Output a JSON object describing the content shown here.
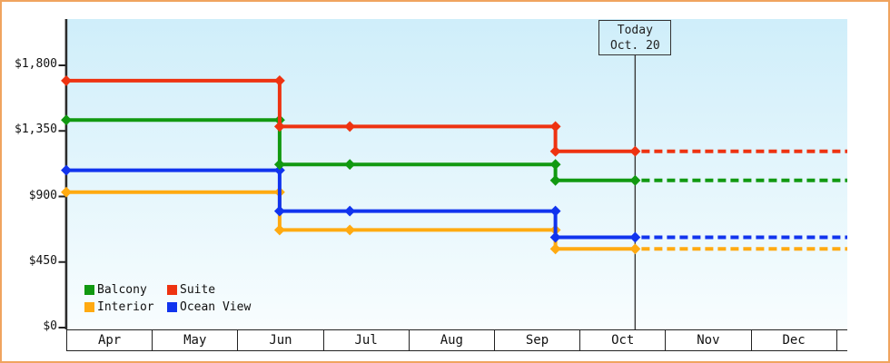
{
  "frame": {
    "border_color": "#f0a45f",
    "background": "#ffffff",
    "plot_gradient_top": "#cfeefa",
    "plot_gradient_bottom": "#f8fdfe",
    "axis_color": "#2b2b2b"
  },
  "chart_data": {
    "type": "line-step",
    "title": "",
    "y_axis": {
      "tick_labels": [
        "$1,800",
        "$1,350",
        "$900",
        "$450",
        "$0"
      ],
      "tick_values": [
        1800,
        1350,
        900,
        450,
        0
      ],
      "min": 0,
      "max": 1800,
      "currency_prefix": "$"
    },
    "x_axis": {
      "month_labels": [
        "Apr",
        "May",
        "Jun",
        "Jul",
        "Aug",
        "Sep",
        "Oct",
        "Nov",
        "Dec"
      ]
    },
    "today_marker": {
      "line1": "Today",
      "line2": "Oct. 20",
      "month_offset": 6.64
    },
    "price_drop_month_offsets": [
      2.49,
      5.71
    ],
    "mid_marker_month_offset": 3.31,
    "projection_end_month_offset": 9.12,
    "projection_style": "dashed",
    "grid": "off",
    "legend_position": "bottom-left",
    "series": [
      {
        "name": "Interior",
        "color": "#ffaa11",
        "prices_by_period": [
          930,
          670,
          540
        ]
      },
      {
        "name": "Ocean View",
        "color": "#1134ee",
        "prices_by_period": [
          1080,
          800,
          620
        ]
      },
      {
        "name": "Balcony",
        "color": "#119911",
        "prices_by_period": [
          1425,
          1120,
          1010
        ]
      },
      {
        "name": "Suite",
        "color": "#ee3311",
        "prices_by_period": [
          1695,
          1380,
          1210
        ]
      }
    ],
    "legend": {
      "order": [
        "Balcony",
        "Suite",
        "Interior",
        "Ocean View"
      ]
    }
  }
}
